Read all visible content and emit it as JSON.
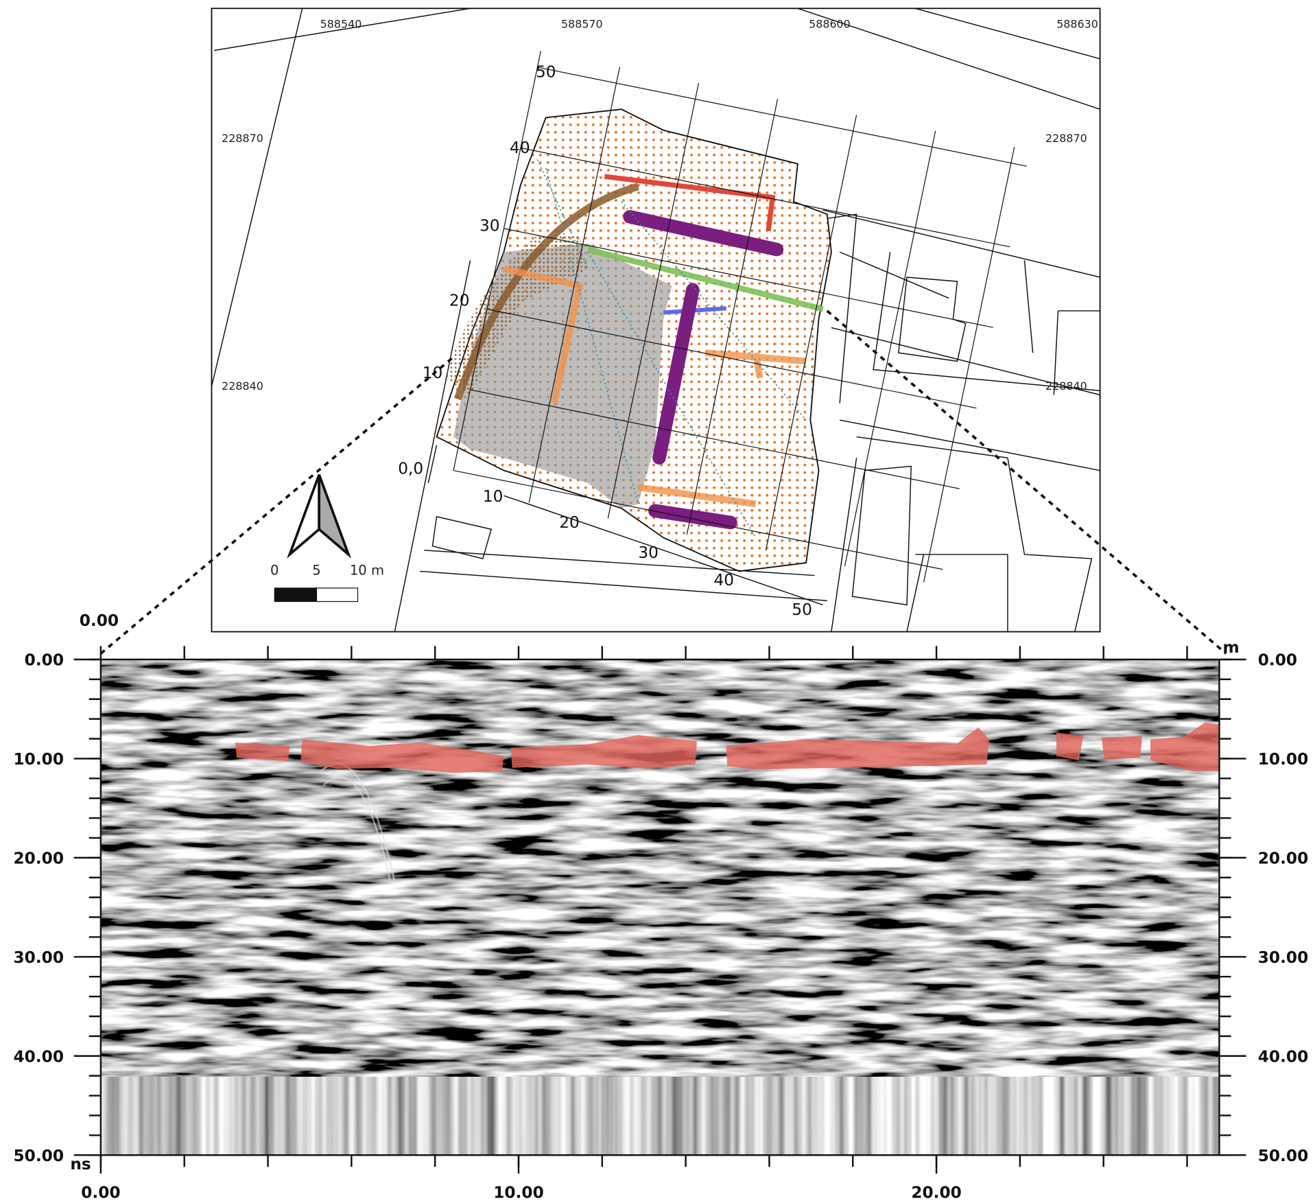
{
  "map": {
    "easting_labels": [
      "588540",
      "588570",
      "588600",
      "588630"
    ],
    "northing_labels": [
      "228870",
      "228840"
    ],
    "grid_labels": {
      "y": [
        "50",
        "40",
        "30",
        "20",
        "10",
        "0,0"
      ],
      "x": [
        "10",
        "20",
        "30",
        "40",
        "50"
      ]
    },
    "scale_bar": [
      "0",
      "5",
      "10 m"
    ]
  },
  "radargram": {
    "top_left_label": "0.00",
    "x_unit": "m",
    "y_unit": "ns",
    "xlim": [
      0,
      26.77
    ],
    "ylim": [
      0,
      50
    ],
    "xticks": [
      {
        "value": 0,
        "label": "0.00"
      },
      {
        "value": 10,
        "label": "10.00"
      },
      {
        "value": 20,
        "label": "20.00"
      }
    ],
    "x_minor_ticks": [
      0,
      2,
      4,
      6,
      8,
      10,
      12,
      14,
      16,
      18,
      20,
      22,
      24,
      26
    ],
    "yticks": [
      {
        "value": 0,
        "label": "0.00"
      },
      {
        "value": 10,
        "label": "10.00"
      },
      {
        "value": 20,
        "label": "20.00"
      },
      {
        "value": 30,
        "label": "30.00"
      },
      {
        "value": 40,
        "label": "40.00"
      },
      {
        "value": 50,
        "label": "50.00"
      }
    ],
    "y_minor_ticks": [
      0,
      2,
      4,
      6,
      8,
      10,
      12,
      14,
      16,
      18,
      20,
      22,
      24,
      26,
      28,
      30,
      32,
      34,
      36,
      38,
      40,
      42,
      44,
      46,
      48,
      50
    ]
  }
}
